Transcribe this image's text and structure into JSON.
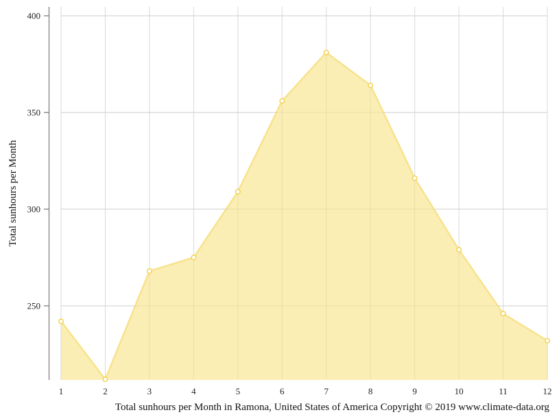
{
  "chart_data": {
    "type": "area",
    "title": "",
    "caption": "Total sunhours per Month in Ramona, United States of America Copyright © 2019 www.climate-data.org",
    "xlabel": "",
    "ylabel": "Total sunhours per Month",
    "categories": [
      "1",
      "2",
      "3",
      "4",
      "5",
      "6",
      "7",
      "8",
      "9",
      "10",
      "11",
      "12"
    ],
    "series": [
      {
        "name": "Total sunhours per Month",
        "values": [
          242,
          212,
          268,
          275,
          309,
          356,
          381,
          364,
          316,
          279,
          246,
          232
        ]
      }
    ],
    "yticks": [
      250,
      300,
      350,
      400
    ],
    "ylim": [
      211.7,
      400
    ],
    "grid": true,
    "legend": "none",
    "colors": {
      "fill": "#faedb0",
      "line": "#f8e28c",
      "marker": "#f3cf4a",
      "grid": "#d9d9d9",
      "axis": "#777777"
    }
  }
}
